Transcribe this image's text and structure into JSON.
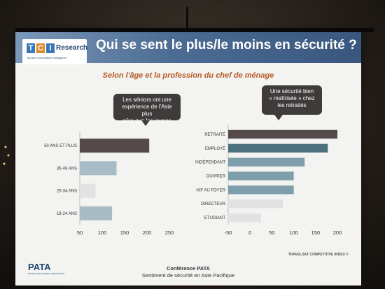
{
  "header": {
    "logo_letters": [
      "T",
      "C",
      "I"
    ],
    "logo_word": "Research",
    "logo_tagline": "Tourism Competitive Intelligence",
    "title": "Qui se sent le plus/le moins en sécurité ?"
  },
  "subtitle": "Selon l'âge et la profession du chef de ménage",
  "callouts": {
    "left": [
      "Les séniors ont une",
      "expérience de l'Asie plus",
      "sûre que les jeunes"
    ],
    "right": [
      "Une sécurité bien",
      "« maîtrisée » chez",
      "les retraités"
    ]
  },
  "colors": {
    "dark_bar": "#544a4c",
    "teal_bar": "#4c7080",
    "mid_bar": "#7e9eab",
    "light_bar": "#a8bcc6",
    "faint_bar": "#e2e2e2"
  },
  "chart_data": [
    {
      "type": "bar",
      "orientation": "horizontal",
      "categories": [
        "50 ANS ET PLUS",
        "35-49 ANS",
        "25-34 ANS",
        "18-24 ANS"
      ],
      "values": [
        205,
        132,
        85,
        122
      ],
      "xlim": [
        50,
        250
      ],
      "xticks": [
        50,
        100,
        150,
        200,
        250
      ],
      "xlabel": "",
      "ylabel": "",
      "bar_colors": [
        "dark_bar",
        "light_bar",
        "faint_bar",
        "light_bar"
      ],
      "grid": false
    },
    {
      "type": "bar",
      "orientation": "horizontal",
      "categories": [
        "RETRAITÉ",
        "EMPLOYÉ",
        "INDÉPENDANT",
        "OUVRIER",
        "H/F AU FOYER",
        "DIRECTEUR",
        "ETUDIANT"
      ],
      "values": [
        200,
        178,
        125,
        100,
        100,
        75,
        25
      ],
      "xlim": [
        -50,
        200
      ],
      "xticks": [
        -50,
        0,
        50,
        100,
        150,
        200
      ],
      "xlabel": "",
      "ylabel": "",
      "bar_colors": [
        "dark_bar",
        "teal_bar",
        "mid_bar",
        "mid_bar",
        "mid_bar",
        "faint_bar",
        "faint_bar"
      ],
      "grid": false
    }
  ],
  "source_note": "TRAVELSAT COMPETITIVE INDEX ©",
  "pata": {
    "logo": "PATA",
    "tagline": "PACIFIC ASIA TRAVEL ASSOCIATION"
  },
  "footer": {
    "line1": "Conférence PATA",
    "line2": "Sentiment de sécurité en Asie Pacifique"
  }
}
